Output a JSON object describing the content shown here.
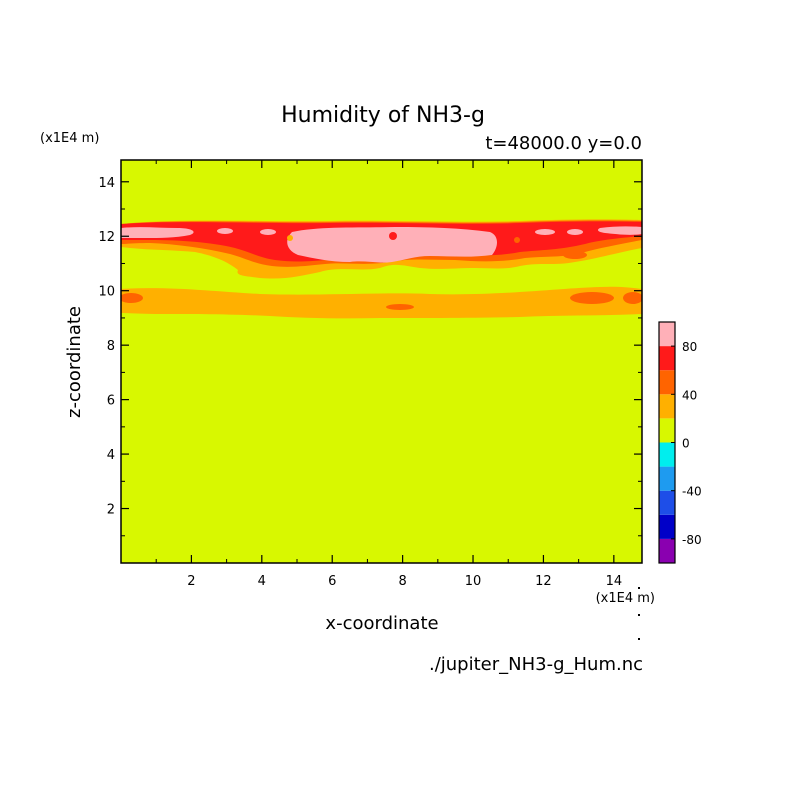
{
  "chart_data": {
    "type": "heatmap",
    "title": "Humidity of NH3-g",
    "subtitle": "t=48000.0 y=0.0",
    "xlabel": "x-coordinate",
    "ylabel": "z-coordinate",
    "x_unit": "(x1E4 m)",
    "y_unit": "(x1E4 m)",
    "xlim": [
      0,
      14.8
    ],
    "ylim": [
      0,
      14.8
    ],
    "x_ticks": [
      2,
      4,
      6,
      8,
      10,
      12,
      14
    ],
    "y_ticks": [
      2,
      4,
      6,
      8,
      10,
      12,
      14
    ],
    "footer": "./jupiter_NH3-g_Hum.nc",
    "colorbar": {
      "levels": [
        -100,
        -80,
        -60,
        -40,
        -20,
        0,
        20,
        40,
        60,
        80,
        100
      ],
      "colors": [
        "#8a00b0",
        "#0000c8",
        "#1e4ee8",
        "#1e9bf0",
        "#00eeee",
        "#d8f800",
        "#ffb000",
        "#ff6400",
        "#ff1a1a",
        "#ffb0b8"
      ],
      "tick_labels": [
        "80",
        "40",
        "0",
        "-40",
        "-80"
      ],
      "tick_values": [
        80,
        40,
        0,
        -40,
        -80
      ]
    },
    "regions": [
      {
        "name": "background",
        "value_range": [
          0,
          20
        ],
        "z_range": [
          0,
          14.8
        ]
      },
      {
        "name": "lower layer",
        "value_range": [
          20,
          40
        ],
        "z_range": [
          9.1,
          10.3
        ]
      },
      {
        "name": "lower layer patches",
        "value_range": [
          40,
          60
        ],
        "z_range": [
          9.4,
          10.0
        ]
      },
      {
        "name": "upper layer",
        "value_range": [
          20,
          40
        ],
        "z_range": [
          10.8,
          12.8
        ]
      },
      {
        "name": "upper layer band",
        "value_range": [
          60,
          80
        ],
        "z_range": [
          11.4,
          12.8
        ]
      },
      {
        "name": "upper layer core",
        "value_range": [
          80,
          100
        ],
        "z_range": [
          11.5,
          12.5
        ]
      }
    ]
  }
}
